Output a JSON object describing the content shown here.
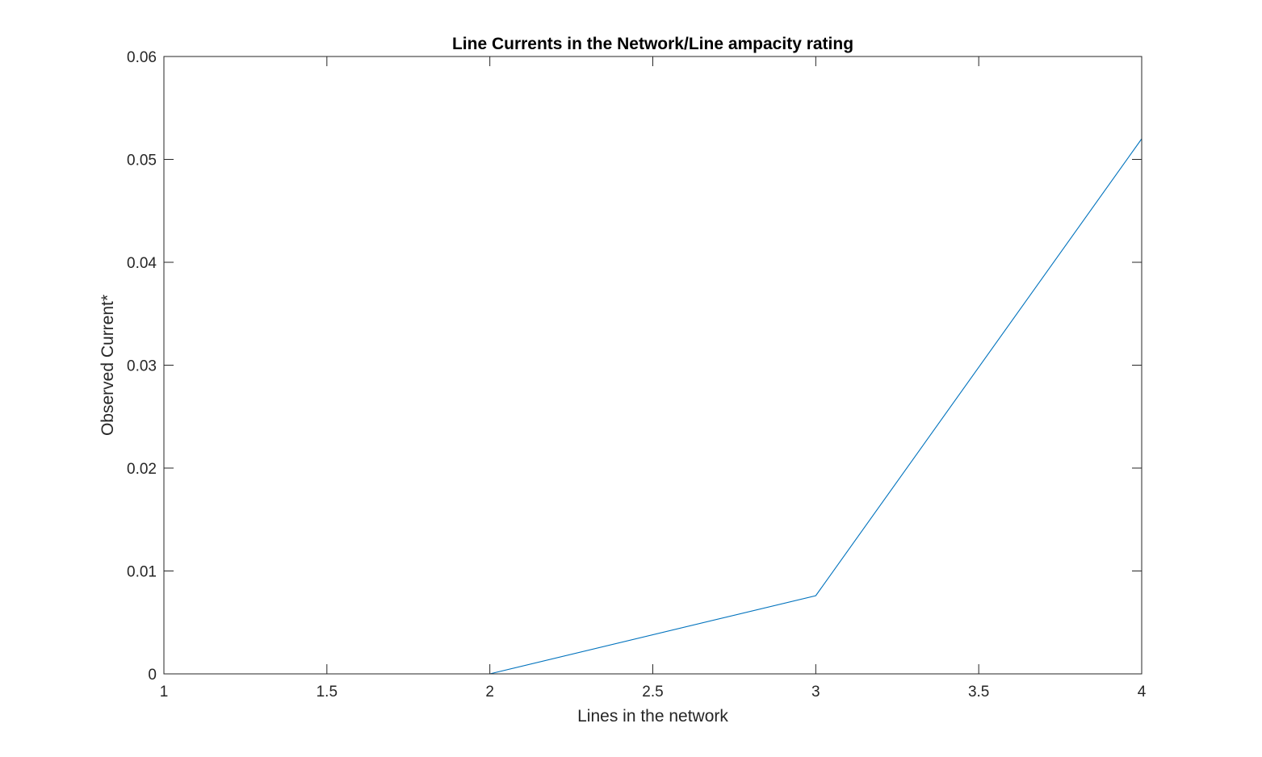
{
  "chart_data": {
    "type": "line",
    "title": "Line Currents in the Network/Line ampacity rating",
    "xlabel": "Lines in the network",
    "ylabel": "Observed Current*",
    "xlim": [
      1,
      4
    ],
    "ylim": [
      0,
      0.06
    ],
    "xticks": [
      "1",
      "1.5",
      "2",
      "2.5",
      "3",
      "3.5",
      "4"
    ],
    "yticks": [
      "0",
      "0.01",
      "0.02",
      "0.03",
      "0.04",
      "0.05",
      "0.06"
    ],
    "grid": false,
    "legend": "none",
    "series": [
      {
        "x": [
          1,
          2,
          3,
          4
        ],
        "values": [
          0,
          0,
          0.0076,
          0.052
        ],
        "color": "#0072BD"
      }
    ]
  },
  "colors": {
    "axis": "#262626",
    "line": "#0072BD",
    "background": "#ffffff"
  }
}
